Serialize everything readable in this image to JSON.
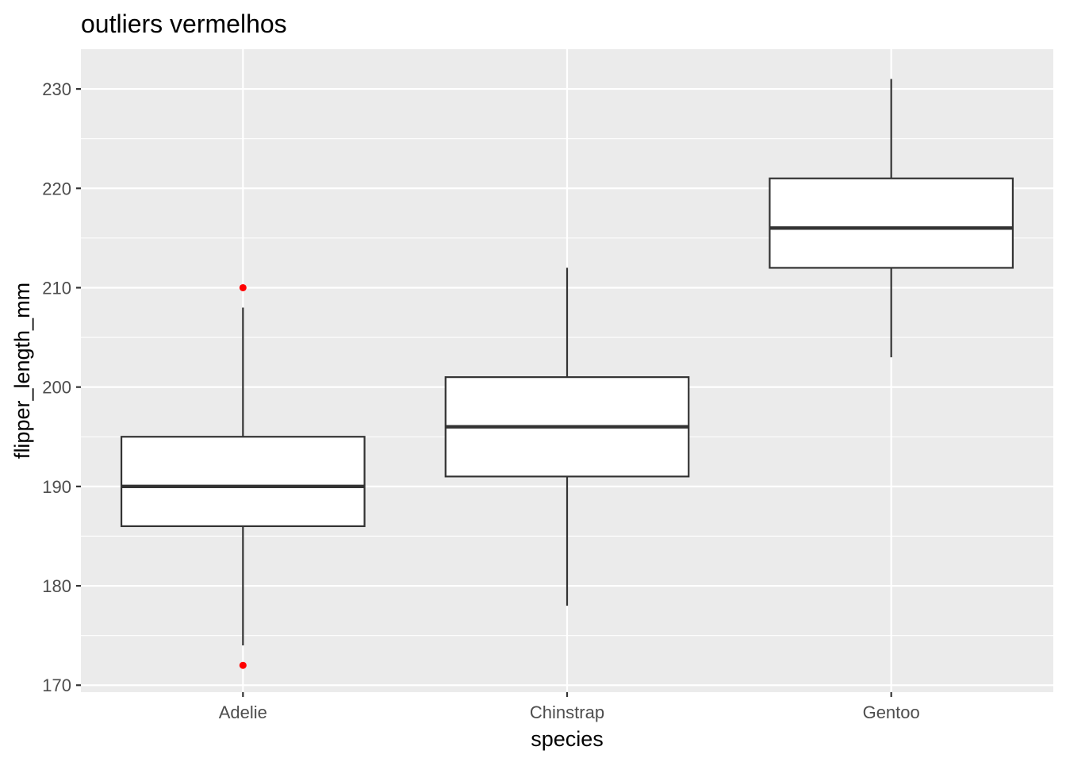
{
  "chart_data": {
    "type": "boxplot",
    "title": "outliers vermelhos",
    "xlabel": "species",
    "ylabel": "flipper_length_mm",
    "ylim": [
      169.3,
      234
    ],
    "yticks": [
      170,
      180,
      190,
      200,
      210,
      220,
      230
    ],
    "grid": true,
    "legend": "none",
    "categories": [
      "Adelie",
      "Chinstrap",
      "Gentoo"
    ],
    "boxes": [
      {
        "category": "Adelie",
        "whisker_low": 174,
        "q1": 186,
        "median": 190,
        "q3": 195,
        "whisker_high": 208,
        "outliers": [
          172,
          210
        ]
      },
      {
        "category": "Chinstrap",
        "whisker_low": 178,
        "q1": 191,
        "median": 196,
        "q3": 201,
        "whisker_high": 212,
        "outliers": []
      },
      {
        "category": "Gentoo",
        "whisker_low": 203,
        "q1": 212,
        "median": 216,
        "q3": 221,
        "whisker_high": 231,
        "outliers": []
      }
    ],
    "colors": {
      "panel": "#ebebeb",
      "grid": "#ffffff",
      "box_fill": "#ffffff",
      "box_line": "#333333",
      "outlier": "#ff0000",
      "tick": "#333333"
    }
  }
}
